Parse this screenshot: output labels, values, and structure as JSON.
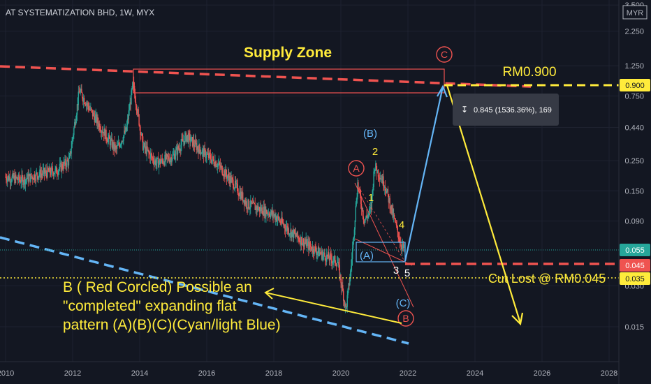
{
  "header": {
    "symbol": "AT SYSTEMATIZATION BHD, 1W, MYX",
    "currency": "MYR"
  },
  "colors": {
    "background": "#131722",
    "grid": "#1e2230",
    "axis_text": "#b2b5be",
    "candle_up": "#26a69a",
    "candle_down": "#ef5350",
    "supply": "#ef5350",
    "yellow": "#ffeb3b",
    "light_blue": "#64b5f6",
    "tooltip_bg": "#363a45"
  },
  "annotations": {
    "supply_zone": "Supply Zone",
    "target_price": "RM0.900",
    "cut_loss": "Cut Lost @ RM0.045",
    "measure": "0.845 (1536.36%), 169",
    "note_line1": "B ( Red Corcled)  Possible an",
    "note_line2": "\"completed\" expanding flat",
    "note_line3": "pattern (A)(B)(C)(Cyan/light Blue)",
    "label_C_red": "C",
    "label_A_red": "A",
    "label_B_red": "B",
    "label_B_paren": "(B)",
    "label_A_paren": "(A)",
    "label_C_paren": "(C)",
    "wave_1": "1",
    "wave_2": "2",
    "wave_3": "3",
    "wave_4": "4",
    "wave_5": "5"
  },
  "price_badges": [
    {
      "label": "0.900",
      "kind": "yellow"
    },
    {
      "label": "0.055",
      "kind": "teal"
    },
    {
      "label": "0.045",
      "kind": "red"
    },
    {
      "label": "0.035",
      "kind": "yellow"
    }
  ],
  "chart_data": {
    "type": "candlestick",
    "title": "AT SYSTEMATIZATION BHD, 1W, MYX",
    "y_scale": "log",
    "y_ticks": [
      "0.015",
      "0.030",
      "0.090",
      "0.150",
      "0.250",
      "0.440",
      "0.750",
      "1.250",
      "2.250",
      "3.500"
    ],
    "x_ticks": [
      "2010",
      "2012",
      "2014",
      "2016",
      "2018",
      "2020",
      "2022",
      "2024",
      "2026",
      "2028"
    ],
    "price_path": [
      {
        "x": 2010.0,
        "y": 0.19
      },
      {
        "x": 2010.5,
        "y": 0.18
      },
      {
        "x": 2011.0,
        "y": 0.2
      },
      {
        "x": 2011.5,
        "y": 0.21
      },
      {
        "x": 2011.9,
        "y": 0.25
      },
      {
        "x": 2012.2,
        "y": 0.82
      },
      {
        "x": 2012.6,
        "y": 0.55
      },
      {
        "x": 2013.0,
        "y": 0.38
      },
      {
        "x": 2013.3,
        "y": 0.3
      },
      {
        "x": 2013.6,
        "y": 0.42
      },
      {
        "x": 2013.8,
        "y": 0.92
      },
      {
        "x": 2014.1,
        "y": 0.32
      },
      {
        "x": 2014.5,
        "y": 0.24
      },
      {
        "x": 2015.0,
        "y": 0.27
      },
      {
        "x": 2015.4,
        "y": 0.38
      },
      {
        "x": 2015.8,
        "y": 0.3
      },
      {
        "x": 2016.3,
        "y": 0.24
      },
      {
        "x": 2016.8,
        "y": 0.17
      },
      {
        "x": 2017.2,
        "y": 0.12
      },
      {
        "x": 2017.6,
        "y": 0.11
      },
      {
        "x": 2018.0,
        "y": 0.1
      },
      {
        "x": 2018.5,
        "y": 0.075
      },
      {
        "x": 2019.0,
        "y": 0.06
      },
      {
        "x": 2019.5,
        "y": 0.05
      },
      {
        "x": 2019.9,
        "y": 0.045
      },
      {
        "x": 2020.15,
        "y": 0.02
      },
      {
        "x": 2020.3,
        "y": 0.04
      },
      {
        "x": 2020.5,
        "y": 0.17
      },
      {
        "x": 2020.7,
        "y": 0.09
      },
      {
        "x": 2020.9,
        "y": 0.11
      },
      {
        "x": 2021.0,
        "y": 0.23
      },
      {
        "x": 2021.3,
        "y": 0.17
      },
      {
        "x": 2021.6,
        "y": 0.09
      },
      {
        "x": 2021.8,
        "y": 0.06
      },
      {
        "x": 2021.9,
        "y": 0.055
      }
    ],
    "levels": {
      "supply_zone": [
        0.9,
        1.25
      ],
      "target": 0.9,
      "cut_loss": 0.045,
      "current": 0.055,
      "low": 0.035
    },
    "projection": [
      {
        "x": 2021.9,
        "y": 0.045
      },
      {
        "x": 2023.0,
        "y": 0.9
      },
      {
        "x": 2025.3,
        "y": 0.015
      }
    ]
  }
}
